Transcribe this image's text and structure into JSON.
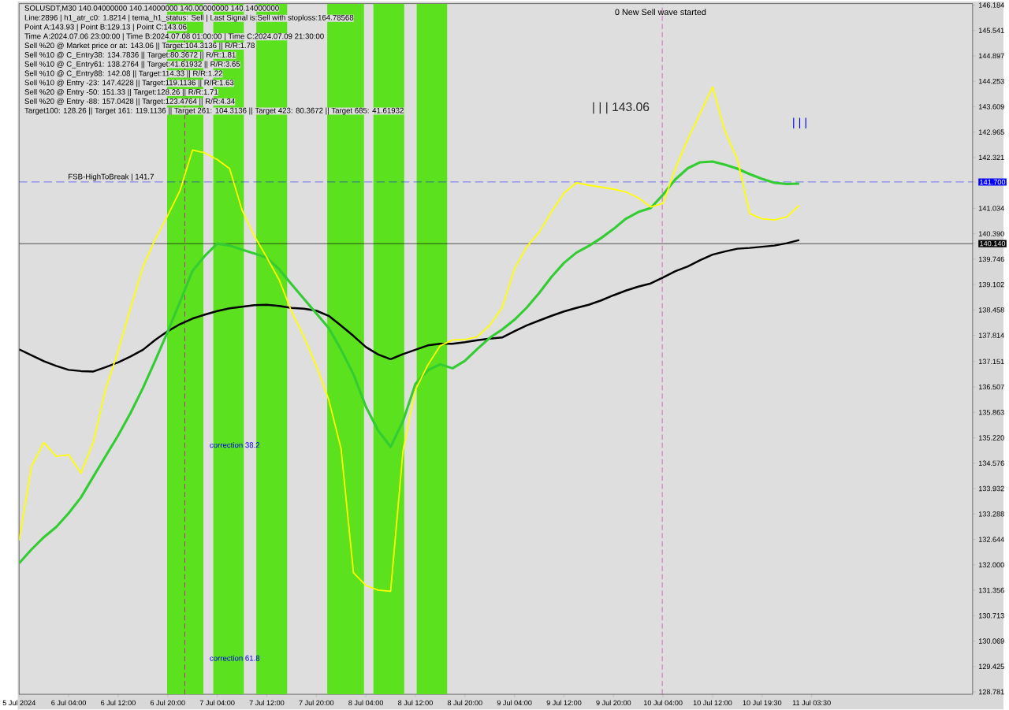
{
  "chart_data": {
    "type": "line",
    "annotations": [
      "SOLUSDT,M30  140.04000000 140.14000000 140.00000000 140.14000000",
      "Line:2896 | h1_atr_c0: 1.8214 | tema_h1_status: Sell | Last Signal is:Sell with stoploss:164.78568",
      "Point A:143.93 | Point B:129.13 | Point C:143.06",
      "Time A:2024.07.06 23:00:00 | Time B:2024.07.08 01:00:00 | Time C:2024.07.09 21:30:00",
      "Sell %20 @ Market price or at: 143.06 || Target:104.3136 || R/R:1.78",
      "Sell %10 @ C_Entry38: 134.7836 || Target:80.3672 || R/R:1.81",
      "Sell %10 @ C_Entry61: 138.2764 || Target:41.61932 || R/R:3.65",
      "Sell %10 @ C_Entry88: 142.08 || Target:114.33 || R/R:1.22",
      "Sell %10 @ Entry -23: 147.4228 || Target:119.1136 || R/R:1.63",
      "Sell %20 @ Entry -50: 151.33 || Target:128.26 || R/R:1.71",
      "Sell %20 @ Entry -88: 157.0428 || Target:123.4764 || R/R:4.34",
      "Target100: 128.26 || Target 161: 119.1136 || Target 261: 104.3136 || Target 423: 80.3672 || Target 685: 41.61932",
      "| | | 143.06",
      "| | |",
      "correction 38.2",
      "correction 61.8",
      "0 New Sell wave started"
    ],
    "categories": [
      "5 Jul 2024",
      null,
      null,
      null,
      "6 Jul 04:00",
      null,
      null,
      null,
      "6 Jul 12:00",
      null,
      null,
      null,
      "6 Jul 20:00",
      null,
      null,
      null,
      "7 Jul 04:00",
      null,
      null,
      null,
      "7 Jul 12:00",
      null,
      null,
      null,
      "7 Jul 20:00",
      null,
      null,
      null,
      "8 Jul 04:00",
      null,
      null,
      null,
      "8 Jul 12:00",
      null,
      null,
      null,
      "8 Jul 20:00",
      null,
      null,
      null,
      "9 Jul 04:00",
      null,
      null,
      null,
      "9 Jul 12:00",
      null,
      null,
      null,
      "9 Jul 20:00",
      null,
      null,
      null,
      "10 Jul 04:00",
      null,
      null,
      null,
      "10 Jul 12:00",
      null,
      null,
      null,
      "10 Jul 19:30",
      null,
      null,
      null,
      "11 Jul 03:30",
      null,
      null,
      null,
      null,
      null,
      null,
      null,
      null,
      null,
      null,
      null,
      null
    ],
    "ylim": [
      128.72,
      146.22
    ],
    "yticks": [
      128.781,
      129.425,
      130.069,
      130.713,
      131.356,
      {
        "value": 132,
        "label": "132.000"
      },
      132.644,
      133.288,
      133.932,
      134.576,
      {
        "value": 135.22,
        "label": "135.220"
      },
      135.863,
      136.507,
      137.151,
      137.814,
      138.458,
      139.102,
      139.746,
      {
        "value": 140.14,
        "label": "140.140"
      },
      {
        "value": 140.39,
        "label": "140.390"
      },
      141.034,
      {
        "value": 141.7,
        "label": "141.700"
      },
      142.321,
      142.965,
      143.609,
      144.253,
      144.897,
      145.541,
      146.184
    ],
    "ref_lines": [
      {
        "axis": "y",
        "value": 141.7,
        "label": "FSB-HighToBreak | 141.7",
        "color": "#0000ff",
        "line_style": "dashed"
      },
      {
        "axis": "y",
        "value": 140.14,
        "color": "#000000",
        "line_style": "solid"
      }
    ],
    "series": [
      {
        "color": "#000000",
        "values": [
          137.46,
          137.31,
          137.16,
          137.04,
          136.94,
          136.91,
          136.9,
          137.01,
          137.13,
          137.28,
          137.45,
          137.7,
          137.92,
          138.1,
          138.24,
          138.34,
          138.43,
          138.5,
          138.54,
          138.58,
          138.59,
          138.56,
          138.51,
          138.49,
          138.44,
          138.31,
          138.06,
          137.8,
          137.52,
          137.33,
          137.21,
          137.34,
          137.45,
          137.56,
          137.6,
          137.6,
          137.64,
          137.69,
          137.73,
          137.76,
          137.92,
          138.07,
          138.19,
          138.31,
          138.42,
          138.51,
          138.59,
          138.7,
          138.83,
          138.95,
          139.05,
          139.13,
          139.28,
          139.44,
          139.56,
          139.72,
          139.86,
          139.94,
          140.01,
          140.03,
          140.06,
          140.09,
          140.15,
          140.23,
          null,
          null,
          null,
          null,
          null,
          null,
          null,
          null,
          null,
          null,
          null,
          null,
          null
        ]
      },
      {
        "color": "#33cc33",
        "values": [
          132.04,
          132.39,
          132.7,
          132.96,
          133.31,
          133.71,
          134.24,
          134.76,
          135.28,
          135.85,
          136.48,
          137.18,
          137.91,
          138.67,
          139.45,
          139.83,
          140.14,
          140.09,
          139.99,
          139.89,
          139.78,
          139.49,
          139.11,
          138.74,
          138.37,
          138.0,
          137.45,
          136.83,
          136.01,
          135.4,
          134.99,
          135.64,
          136.58,
          136.93,
          137.08,
          136.98,
          137.17,
          137.47,
          137.75,
          137.96,
          138.21,
          138.52,
          138.89,
          139.3,
          139.65,
          139.91,
          140.08,
          140.28,
          140.51,
          140.77,
          140.94,
          141.04,
          141.38,
          141.77,
          142.05,
          142.2,
          142.22,
          142.14,
          142.04,
          141.9,
          141.78,
          141.68,
          141.65,
          141.66,
          null,
          null,
          null,
          null,
          null,
          null,
          null,
          null,
          null,
          null,
          null,
          null,
          null
        ]
      },
      {
        "color": "#ffff00",
        "values": [
          132.62,
          134.5,
          135.1,
          134.75,
          134.79,
          134.32,
          135.12,
          136.47,
          137.42,
          138.51,
          139.55,
          140.26,
          140.85,
          141.49,
          142.51,
          142.44,
          142.27,
          142.04,
          140.99,
          140.33,
          139.79,
          139.22,
          138.42,
          137.78,
          137.04,
          136.19,
          134.94,
          131.8,
          131.48,
          131.36,
          131.33,
          134.89,
          136.43,
          137.06,
          137.55,
          137.7,
          137.71,
          137.78,
          138.07,
          138.51,
          139.5,
          140.06,
          140.43,
          140.95,
          141.42,
          141.68,
          141.62,
          141.57,
          141.52,
          141.45,
          141.3,
          141.07,
          141.16,
          142.04,
          142.79,
          143.44,
          144.11,
          142.99,
          142.28,
          140.9,
          140.77,
          140.74,
          140.82,
          141.11,
          null,
          null,
          null,
          null,
          null,
          null,
          null,
          null,
          null,
          null,
          null,
          null,
          null
        ]
      }
    ]
  }
}
